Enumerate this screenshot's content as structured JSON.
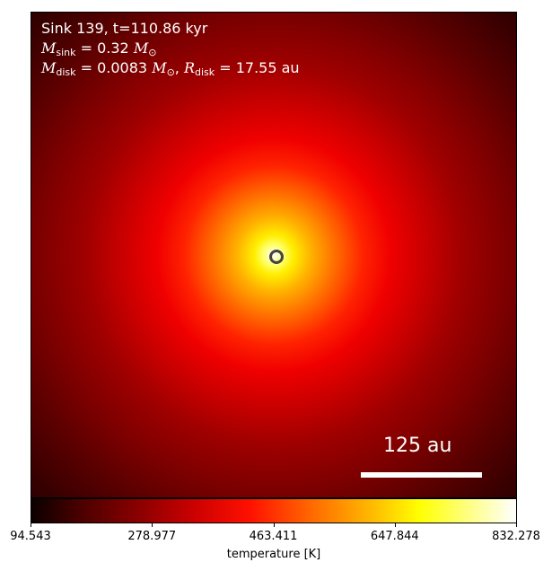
{
  "overlay": {
    "sink_title": "Sink 139, t=110.86 kyr",
    "m_symbol": "M",
    "sink_sub": "sink",
    "sink_mass_value": " = 0.32 ",
    "disk_sub": "disk",
    "disk_mass_value": " = 0.0083 ",
    "sun_sub": "⊙",
    "r_symbol": "R",
    "disk_radius_value": " = 17.55 au",
    "comma": ", "
  },
  "scale_bar": {
    "label": "125 au"
  },
  "colorbar": {
    "label": "temperature [K]",
    "ticks": [
      "94.543",
      "278.977",
      "463.411",
      "647.844",
      "832.278"
    ],
    "min": 94.543,
    "max": 832.278,
    "colormap": "hot"
  }
}
